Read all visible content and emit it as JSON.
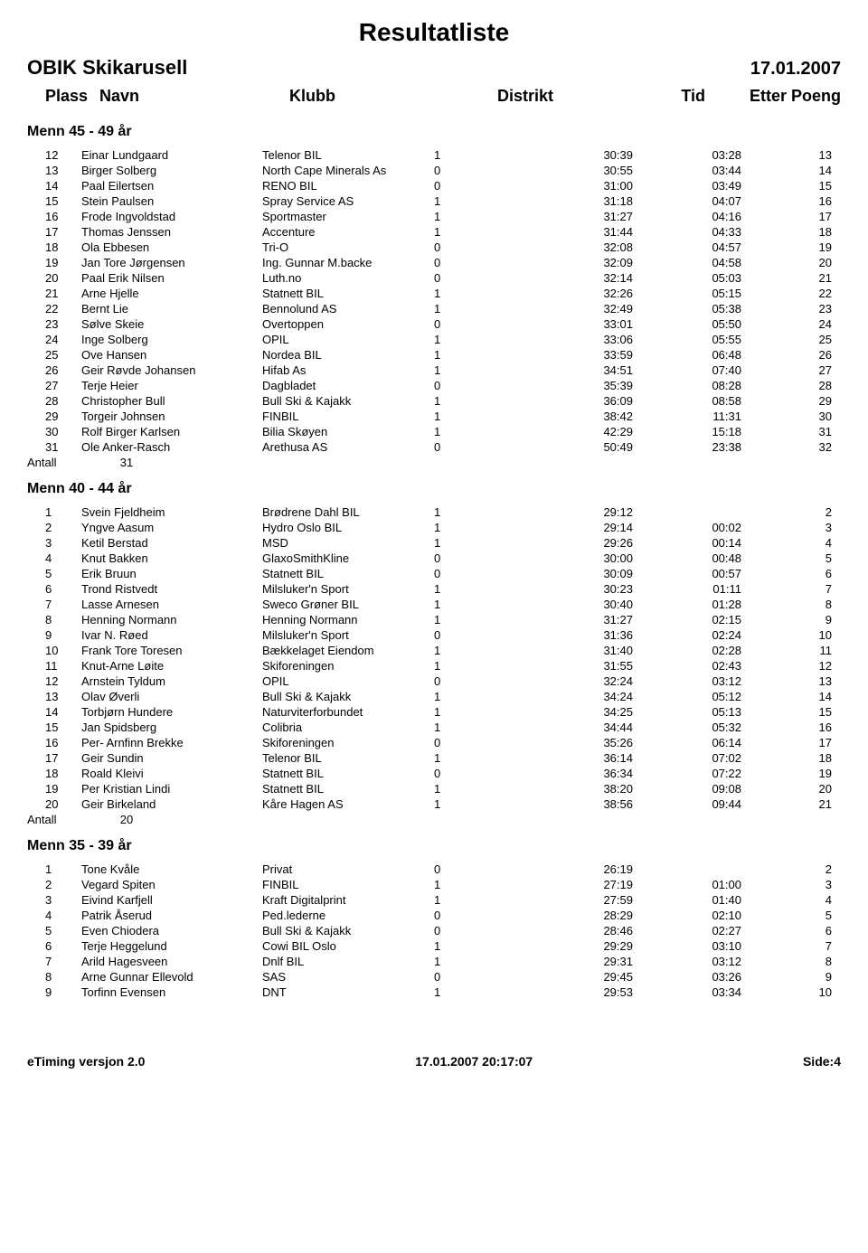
{
  "page": {
    "title": "Resultatliste",
    "event_name": "OBIK Skikarusell",
    "event_date": "17.01.2007"
  },
  "columns": {
    "plass": "Plass",
    "navn": "Navn",
    "klubb": "Klubb",
    "distrikt": "Distrikt",
    "tid": "Tid",
    "etter": "Etter",
    "poeng": "Poeng"
  },
  "sections": [
    {
      "title": "Menn 45 - 49 år",
      "rows": [
        {
          "plass": "12",
          "navn": "Einar Lundgaard",
          "klubb": "Telenor BIL",
          "distrikt": "1",
          "tid": "30:39",
          "etter": "03:28",
          "poeng": "13"
        },
        {
          "plass": "13",
          "navn": "Birger Solberg",
          "klubb": "North Cape Minerals As",
          "distrikt": "0",
          "tid": "30:55",
          "etter": "03:44",
          "poeng": "14"
        },
        {
          "plass": "14",
          "navn": "Paal Eilertsen",
          "klubb": "RENO BIL",
          "distrikt": "0",
          "tid": "31:00",
          "etter": "03:49",
          "poeng": "15"
        },
        {
          "plass": "15",
          "navn": "Stein Paulsen",
          "klubb": "Spray Service AS",
          "distrikt": "1",
          "tid": "31:18",
          "etter": "04:07",
          "poeng": "16"
        },
        {
          "plass": "16",
          "navn": "Frode Ingvoldstad",
          "klubb": "Sportmaster",
          "distrikt": "1",
          "tid": "31:27",
          "etter": "04:16",
          "poeng": "17"
        },
        {
          "plass": "17",
          "navn": "Thomas Jenssen",
          "klubb": "Accenture",
          "distrikt": "1",
          "tid": "31:44",
          "etter": "04:33",
          "poeng": "18"
        },
        {
          "plass": "18",
          "navn": "Ola Ebbesen",
          "klubb": "Tri-O",
          "distrikt": "0",
          "tid": "32:08",
          "etter": "04:57",
          "poeng": "19"
        },
        {
          "plass": "19",
          "navn": "Jan Tore Jørgensen",
          "klubb": "Ing. Gunnar M.backe",
          "distrikt": "0",
          "tid": "32:09",
          "etter": "04:58",
          "poeng": "20"
        },
        {
          "plass": "20",
          "navn": "Paal Erik Nilsen",
          "klubb": "Luth.no",
          "distrikt": "0",
          "tid": "32:14",
          "etter": "05:03",
          "poeng": "21"
        },
        {
          "plass": "21",
          "navn": "Arne Hjelle",
          "klubb": "Statnett BIL",
          "distrikt": "1",
          "tid": "32:26",
          "etter": "05:15",
          "poeng": "22"
        },
        {
          "plass": "22",
          "navn": "Bernt Lie",
          "klubb": "Bennolund AS",
          "distrikt": "1",
          "tid": "32:49",
          "etter": "05:38",
          "poeng": "23"
        },
        {
          "plass": "23",
          "navn": "Sølve Skeie",
          "klubb": "Overtoppen",
          "distrikt": "0",
          "tid": "33:01",
          "etter": "05:50",
          "poeng": "24"
        },
        {
          "plass": "24",
          "navn": "Inge Solberg",
          "klubb": "OPIL",
          "distrikt": "1",
          "tid": "33:06",
          "etter": "05:55",
          "poeng": "25"
        },
        {
          "plass": "25",
          "navn": "Ove Hansen",
          "klubb": "Nordea BIL",
          "distrikt": "1",
          "tid": "33:59",
          "etter": "06:48",
          "poeng": "26"
        },
        {
          "plass": "26",
          "navn": "Geir Røvde Johansen",
          "klubb": "Hifab As",
          "distrikt": "1",
          "tid": "34:51",
          "etter": "07:40",
          "poeng": "27"
        },
        {
          "plass": "27",
          "navn": "Terje Heier",
          "klubb": "Dagbladet",
          "distrikt": "0",
          "tid": "35:39",
          "etter": "08:28",
          "poeng": "28"
        },
        {
          "plass": "28",
          "navn": "Christopher Bull",
          "klubb": "Bull Ski & Kajakk",
          "distrikt": "1",
          "tid": "36:09",
          "etter": "08:58",
          "poeng": "29"
        },
        {
          "plass": "29",
          "navn": "Torgeir Johnsen",
          "klubb": "FINBIL",
          "distrikt": "1",
          "tid": "38:42",
          "etter": "11:31",
          "poeng": "30"
        },
        {
          "plass": "30",
          "navn": "Rolf Birger Karlsen",
          "klubb": "Bilia Skøyen",
          "distrikt": "1",
          "tid": "42:29",
          "etter": "15:18",
          "poeng": "31"
        },
        {
          "plass": "31",
          "navn": "Ole Anker-Rasch",
          "klubb": "Arethusa AS",
          "distrikt": "0",
          "tid": "50:49",
          "etter": "23:38",
          "poeng": "32"
        }
      ],
      "antall_label": "Antall",
      "antall": "31"
    },
    {
      "title": "Menn 40 - 44 år",
      "rows": [
        {
          "plass": "1",
          "navn": "Svein Fjeldheim",
          "klubb": "Brødrene Dahl BIL",
          "distrikt": "1",
          "tid": "29:12",
          "etter": "",
          "poeng": "2"
        },
        {
          "plass": "2",
          "navn": "Yngve Aasum",
          "klubb": "Hydro Oslo BIL",
          "distrikt": "1",
          "tid": "29:14",
          "etter": "00:02",
          "poeng": "3"
        },
        {
          "plass": "3",
          "navn": "Ketil Berstad",
          "klubb": "MSD",
          "distrikt": "1",
          "tid": "29:26",
          "etter": "00:14",
          "poeng": "4"
        },
        {
          "plass": "4",
          "navn": "Knut Bakken",
          "klubb": "GlaxoSmithKline",
          "distrikt": "0",
          "tid": "30:00",
          "etter": "00:48",
          "poeng": "5"
        },
        {
          "plass": "5",
          "navn": "Erik Bruun",
          "klubb": "Statnett BIL",
          "distrikt": "0",
          "tid": "30:09",
          "etter": "00:57",
          "poeng": "6"
        },
        {
          "plass": "6",
          "navn": "Trond Ristvedt",
          "klubb": "Milsluker'n Sport",
          "distrikt": "1",
          "tid": "30:23",
          "etter": "01:11",
          "poeng": "7"
        },
        {
          "plass": "7",
          "navn": "Lasse Arnesen",
          "klubb": "Sweco Grøner BIL",
          "distrikt": "1",
          "tid": "30:40",
          "etter": "01:28",
          "poeng": "8"
        },
        {
          "plass": "8",
          "navn": "Henning Normann",
          "klubb": "Henning Normann",
          "distrikt": "1",
          "tid": "31:27",
          "etter": "02:15",
          "poeng": "9"
        },
        {
          "plass": "9",
          "navn": "Ivar N. Røed",
          "klubb": "Milsluker'n Sport",
          "distrikt": "0",
          "tid": "31:36",
          "etter": "02:24",
          "poeng": "10"
        },
        {
          "plass": "10",
          "navn": "Frank Tore Toresen",
          "klubb": "Bækkelaget Eiendom",
          "distrikt": "1",
          "tid": "31:40",
          "etter": "02:28",
          "poeng": "11"
        },
        {
          "plass": "11",
          "navn": "Knut-Arne Løite",
          "klubb": "Skiforeningen",
          "distrikt": "1",
          "tid": "31:55",
          "etter": "02:43",
          "poeng": "12"
        },
        {
          "plass": "12",
          "navn": "Arnstein Tyldum",
          "klubb": "OPIL",
          "distrikt": "0",
          "tid": "32:24",
          "etter": "03:12",
          "poeng": "13"
        },
        {
          "plass": "13",
          "navn": "Olav Øverli",
          "klubb": "Bull Ski & Kajakk",
          "distrikt": "1",
          "tid": "34:24",
          "etter": "05:12",
          "poeng": "14"
        },
        {
          "plass": "14",
          "navn": "Torbjørn Hundere",
          "klubb": "Naturviterforbundet",
          "distrikt": "1",
          "tid": "34:25",
          "etter": "05:13",
          "poeng": "15"
        },
        {
          "plass": "15",
          "navn": "Jan Spidsberg",
          "klubb": "Colibria",
          "distrikt": "1",
          "tid": "34:44",
          "etter": "05:32",
          "poeng": "16"
        },
        {
          "plass": "16",
          "navn": "Per- Arnfinn Brekke",
          "klubb": "Skiforeningen",
          "distrikt": "0",
          "tid": "35:26",
          "etter": "06:14",
          "poeng": "17"
        },
        {
          "plass": "17",
          "navn": "Geir Sundin",
          "klubb": "Telenor BIL",
          "distrikt": "1",
          "tid": "36:14",
          "etter": "07:02",
          "poeng": "18"
        },
        {
          "plass": "18",
          "navn": "Roald Kleivi",
          "klubb": "Statnett BIL",
          "distrikt": "0",
          "tid": "36:34",
          "etter": "07:22",
          "poeng": "19"
        },
        {
          "plass": "19",
          "navn": "Per Kristian Lindi",
          "klubb": "Statnett BIL",
          "distrikt": "1",
          "tid": "38:20",
          "etter": "09:08",
          "poeng": "20"
        },
        {
          "plass": "20",
          "navn": "Geir Birkeland",
          "klubb": "Kåre Hagen AS",
          "distrikt": "1",
          "tid": "38:56",
          "etter": "09:44",
          "poeng": "21"
        }
      ],
      "antall_label": "Antall",
      "antall": "20"
    },
    {
      "title": "Menn 35 - 39 år",
      "rows": [
        {
          "plass": "1",
          "navn": "Tone Kvåle",
          "klubb": "Privat",
          "distrikt": "0",
          "tid": "26:19",
          "etter": "",
          "poeng": "2"
        },
        {
          "plass": "2",
          "navn": "Vegard Spiten",
          "klubb": "FINBIL",
          "distrikt": "1",
          "tid": "27:19",
          "etter": "01:00",
          "poeng": "3"
        },
        {
          "plass": "3",
          "navn": "Eivind Karfjell",
          "klubb": "Kraft Digitalprint",
          "distrikt": "1",
          "tid": "27:59",
          "etter": "01:40",
          "poeng": "4"
        },
        {
          "plass": "4",
          "navn": "Patrik Åserud",
          "klubb": "Ped.lederne",
          "distrikt": "0",
          "tid": "28:29",
          "etter": "02:10",
          "poeng": "5"
        },
        {
          "plass": "5",
          "navn": "Even Chiodera",
          "klubb": "Bull Ski & Kajakk",
          "distrikt": "0",
          "tid": "28:46",
          "etter": "02:27",
          "poeng": "6"
        },
        {
          "plass": "6",
          "navn": "Terje Heggelund",
          "klubb": "Cowi BIL Oslo",
          "distrikt": "1",
          "tid": "29:29",
          "etter": "03:10",
          "poeng": "7"
        },
        {
          "plass": "7",
          "navn": "Arild Hagesveen",
          "klubb": "Dnlf BIL",
          "distrikt": "1",
          "tid": "29:31",
          "etter": "03:12",
          "poeng": "8"
        },
        {
          "plass": "8",
          "navn": "Arne Gunnar Ellevold",
          "klubb": "SAS",
          "distrikt": "0",
          "tid": "29:45",
          "etter": "03:26",
          "poeng": "9"
        },
        {
          "plass": "9",
          "navn": "Torfinn Evensen",
          "klubb": "DNT",
          "distrikt": "1",
          "tid": "29:53",
          "etter": "03:34",
          "poeng": "10"
        }
      ],
      "antall_label": "",
      "antall": ""
    }
  ],
  "footer": {
    "left": "eTiming versjon 2.0",
    "center": "17.01.2007 20:17:07",
    "right": "Side:4"
  }
}
